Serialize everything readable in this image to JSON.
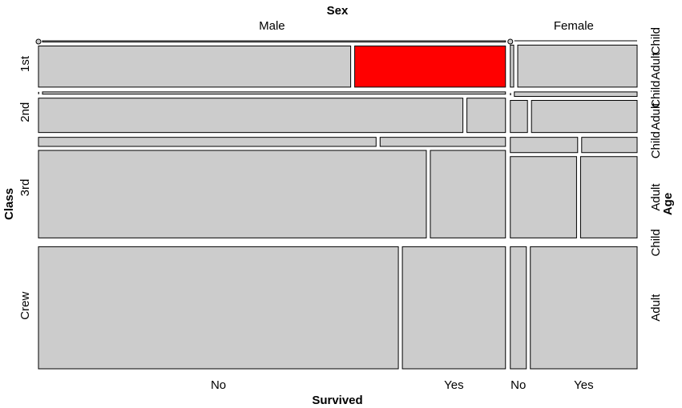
{
  "chart_data": {
    "type": "mosaic",
    "title": "",
    "variables": {
      "x_top": "Sex",
      "x_bottom": "Survived",
      "y_left": "Class",
      "y_right": "Age"
    },
    "sex_levels": [
      "Male",
      "Female"
    ],
    "class_levels": [
      "1st",
      "2nd",
      "3rd",
      "Crew"
    ],
    "age_levels": [
      "Child",
      "Adult"
    ],
    "survived_levels": [
      "No",
      "Yes"
    ],
    "bottom_tick_labels": [
      "No",
      "Yes",
      "No",
      "Yes"
    ],
    "highlight": {
      "class": "1st",
      "age": "Adult",
      "sex": "Male",
      "survived": "Yes",
      "color": "#ff0000"
    },
    "fill_color": "#cccccc",
    "data": [
      {
        "class": "1st",
        "sex": "Male",
        "age": "Child",
        "survived": "No",
        "count": 0
      },
      {
        "class": "1st",
        "sex": "Male",
        "age": "Child",
        "survived": "Yes",
        "count": 5
      },
      {
        "class": "1st",
        "sex": "Male",
        "age": "Adult",
        "survived": "No",
        "count": 118
      },
      {
        "class": "1st",
        "sex": "Male",
        "age": "Adult",
        "survived": "Yes",
        "count": 57
      },
      {
        "class": "1st",
        "sex": "Female",
        "age": "Child",
        "survived": "No",
        "count": 0
      },
      {
        "class": "1st",
        "sex": "Female",
        "age": "Child",
        "survived": "Yes",
        "count": 1
      },
      {
        "class": "1st",
        "sex": "Female",
        "age": "Adult",
        "survived": "No",
        "count": 4
      },
      {
        "class": "1st",
        "sex": "Female",
        "age": "Adult",
        "survived": "Yes",
        "count": 140
      },
      {
        "class": "2nd",
        "sex": "Male",
        "age": "Child",
        "survived": "No",
        "count": 0
      },
      {
        "class": "2nd",
        "sex": "Male",
        "age": "Child",
        "survived": "Yes",
        "count": 11
      },
      {
        "class": "2nd",
        "sex": "Male",
        "age": "Adult",
        "survived": "No",
        "count": 154
      },
      {
        "class": "2nd",
        "sex": "Male",
        "age": "Adult",
        "survived": "Yes",
        "count": 14
      },
      {
        "class": "2nd",
        "sex": "Female",
        "age": "Child",
        "survived": "No",
        "count": 0
      },
      {
        "class": "2nd",
        "sex": "Female",
        "age": "Child",
        "survived": "Yes",
        "count": 13
      },
      {
        "class": "2nd",
        "sex": "Female",
        "age": "Adult",
        "survived": "No",
        "count": 13
      },
      {
        "class": "2nd",
        "sex": "Female",
        "age": "Adult",
        "survived": "Yes",
        "count": 80
      },
      {
        "class": "3rd",
        "sex": "Male",
        "age": "Child",
        "survived": "No",
        "count": 35
      },
      {
        "class": "3rd",
        "sex": "Male",
        "age": "Child",
        "survived": "Yes",
        "count": 13
      },
      {
        "class": "3rd",
        "sex": "Male",
        "age": "Adult",
        "survived": "No",
        "count": 387
      },
      {
        "class": "3rd",
        "sex": "Male",
        "age": "Adult",
        "survived": "Yes",
        "count": 75
      },
      {
        "class": "3rd",
        "sex": "Female",
        "age": "Child",
        "survived": "No",
        "count": 17
      },
      {
        "class": "3rd",
        "sex": "Female",
        "age": "Child",
        "survived": "Yes",
        "count": 14
      },
      {
        "class": "3rd",
        "sex": "Female",
        "age": "Adult",
        "survived": "No",
        "count": 89
      },
      {
        "class": "3rd",
        "sex": "Female",
        "age": "Adult",
        "survived": "Yes",
        "count": 76
      },
      {
        "class": "Crew",
        "sex": "Male",
        "age": "Child",
        "survived": "No",
        "count": 0
      },
      {
        "class": "Crew",
        "sex": "Male",
        "age": "Child",
        "survived": "Yes",
        "count": 0
      },
      {
        "class": "Crew",
        "sex": "Male",
        "age": "Adult",
        "survived": "No",
        "count": 670
      },
      {
        "class": "Crew",
        "sex": "Male",
        "age": "Adult",
        "survived": "Yes",
        "count": 192
      },
      {
        "class": "Crew",
        "sex": "Female",
        "age": "Child",
        "survived": "No",
        "count": 0
      },
      {
        "class": "Crew",
        "sex": "Female",
        "age": "Child",
        "survived": "Yes",
        "count": 0
      },
      {
        "class": "Crew",
        "sex": "Female",
        "age": "Adult",
        "survived": "No",
        "count": 3
      },
      {
        "class": "Crew",
        "sex": "Female",
        "age": "Adult",
        "survived": "Yes",
        "count": 20
      }
    ]
  }
}
